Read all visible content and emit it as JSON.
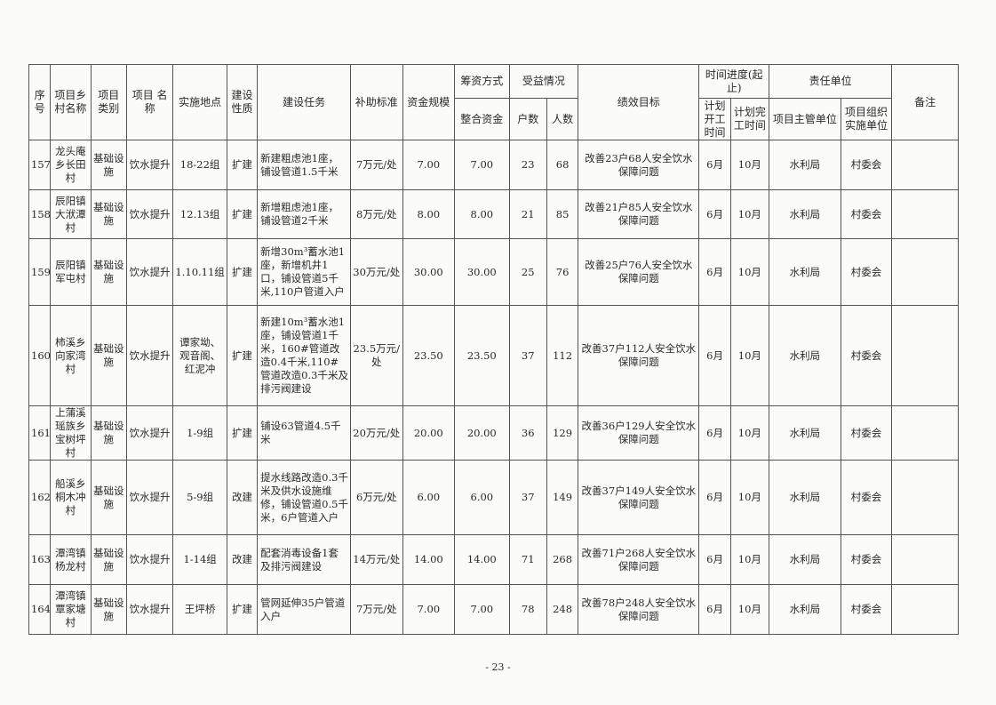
{
  "headers": {
    "seq": "序号",
    "village": "项目乡村名称",
    "category": "项目类别",
    "name": "项目 名称",
    "location": "实施地点",
    "nature": "建设性质",
    "task": "建设任务",
    "subsidy": "补助标准",
    "scale": "资金规模",
    "funding": "筹资方式",
    "integrated": "整合资金",
    "benefit": "受益情况",
    "households": "户数",
    "people": "人数",
    "goal": "绩效目标",
    "schedule": "时间进度(起止)",
    "start": "计划开工时间",
    "end": "计划完工时间",
    "responsible": "责任单位",
    "manager": "项目主管单位",
    "implementer": "项目组织实施单位",
    "remarks": "备注"
  },
  "rows": [
    {
      "seq": "157",
      "village": "龙头庵乡长田村",
      "category": "基础设施",
      "name": "饮水提升",
      "location": "18-22组",
      "nature": "扩建",
      "task": "新建粗虑池1座，铺设管道1.5千米",
      "subsidy": "7万元/处",
      "scale": "7.00",
      "integrated": "7.00",
      "households": "23",
      "people": "68",
      "goal": "改善23户68人安全饮水保障问题",
      "start": "6月",
      "end": "10月",
      "manager": "水利局",
      "implementer": "村委会",
      "remarks": ""
    },
    {
      "seq": "158",
      "village": "辰阳镇大洑潭村",
      "category": "基础设施",
      "name": "饮水提升",
      "location": "12.13组",
      "nature": "扩建",
      "task": "新增粗虑池1座，铺设管道2千米",
      "subsidy": "8万元/处",
      "scale": "8.00",
      "integrated": "8.00",
      "households": "21",
      "people": "85",
      "goal": "改善21户85人安全饮水保障问题",
      "start": "6月",
      "end": "10月",
      "manager": "水利局",
      "implementer": "村委会",
      "remarks": ""
    },
    {
      "seq": "159",
      "village": "辰阳镇军屯村",
      "category": "基础设施",
      "name": "饮水提升",
      "location": "1.10.11组",
      "nature": "扩建",
      "task": "新增30m³蓄水池1座，新增机井1口，铺设管道5千米,110户管道入户",
      "subsidy": "30万元/处",
      "scale": "30.00",
      "integrated": "30.00",
      "households": "25",
      "people": "76",
      "goal": "改善25户76人安全饮水保障问题",
      "start": "6月",
      "end": "10月",
      "manager": "水利局",
      "implementer": "村委会",
      "remarks": ""
    },
    {
      "seq": "160",
      "village": "柿溪乡向家湾村",
      "category": "基础设施",
      "name": "饮水提升",
      "location": "谭家坳、观音阁、红泥冲",
      "nature": "扩建",
      "task": "新建10m³蓄水池1座，铺设管道1千米，160#管道改造0.4千米,110#管道改造0.3千米及排污阀建设",
      "subsidy": "23.5万元/处",
      "scale": "23.50",
      "integrated": "23.50",
      "households": "37",
      "people": "112",
      "goal": "改善37户112人安全饮水保障问题",
      "start": "6月",
      "end": "10月",
      "manager": "水利局",
      "implementer": "村委会",
      "remarks": ""
    },
    {
      "seq": "161",
      "village": "上蒲溪瑶族乡宝树坪村",
      "category": "基础设施",
      "name": "饮水提升",
      "location": "1-9组",
      "nature": "扩建",
      "task": "铺设63管道4.5千米",
      "subsidy": "20万元/处",
      "scale": "20.00",
      "integrated": "20.00",
      "households": "36",
      "people": "129",
      "goal": "改善36户129人安全饮水保障问题",
      "start": "6月",
      "end": "10月",
      "manager": "水利局",
      "implementer": "村委会",
      "remarks": ""
    },
    {
      "seq": "162",
      "village": "船溪乡桐木冲村",
      "category": "基础设施",
      "name": "饮水提升",
      "location": "5-9组",
      "nature": "改建",
      "task": "提水线路改造0.3千米及供水设施维修，铺设管道0.5千米，6户管道入户",
      "subsidy": "6万元/处",
      "scale": "6.00",
      "integrated": "6.00",
      "households": "37",
      "people": "149",
      "goal": "改善37户149人安全饮水保障问题",
      "start": "6月",
      "end": "10月",
      "manager": "水利局",
      "implementer": "村委会",
      "remarks": ""
    },
    {
      "seq": "163",
      "village": "潭湾镇杨龙村",
      "category": "基础设施",
      "name": "饮水提升",
      "location": "1-14组",
      "nature": "改建",
      "task": "配套消毒设备1套及排污阀建设",
      "subsidy": "14万元/处",
      "scale": "14.00",
      "integrated": "14.00",
      "households": "71",
      "people": "268",
      "goal": "改善71户268人安全饮水保障问题",
      "start": "6月",
      "end": "10月",
      "manager": "水利局",
      "implementer": "村委会",
      "remarks": ""
    },
    {
      "seq": "164",
      "village": "潭湾镇覃家塘村",
      "category": "基础设施",
      "name": "饮水提升",
      "location": "王坪桥",
      "nature": "扩建",
      "task": "管网延伸35户管道入户",
      "subsidy": "7万元/处",
      "scale": "7.00",
      "integrated": "7.00",
      "households": "78",
      "people": "248",
      "goal": "改善78户248人安全饮水保障问题",
      "start": "6月",
      "end": "10月",
      "manager": "水利局",
      "implementer": "村委会",
      "remarks": ""
    }
  ],
  "page_number": "- 23 -"
}
